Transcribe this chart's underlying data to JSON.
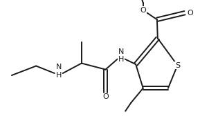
{
  "bg": "#ffffff",
  "lc": "#1a1a1a",
  "lw": 1.4,
  "fs": 8.0,
  "fig_w": 3.02,
  "fig_h": 1.94,
  "dpi": 100,
  "xlim": [
    0,
    10
  ],
  "ylim": [
    0,
    6.44
  ]
}
